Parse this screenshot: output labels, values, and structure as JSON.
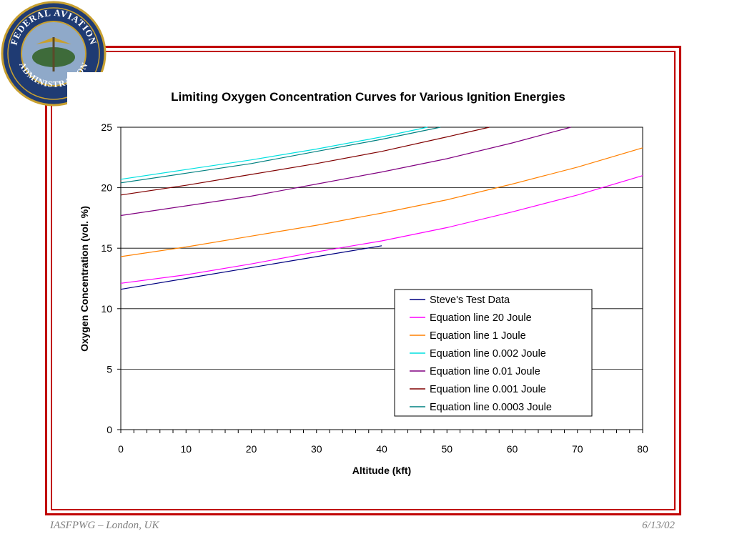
{
  "seal": {
    "top_text": "FEDERAL AVIATION",
    "bottom_text": "ADMINISTRATION"
  },
  "footer": {
    "left": "IASFPWG – London, UK",
    "right": "6/13/02"
  },
  "chart_data": {
    "type": "line",
    "title": "Limiting Oxygen Concentration Curves for Various Ignition Energies",
    "xlabel": "Altitude (kft)",
    "ylabel": "Oxygen Concentration (vol. %)",
    "xlim": [
      0,
      80
    ],
    "ylim": [
      0,
      25
    ],
    "xticks": [
      0,
      10,
      20,
      30,
      40,
      50,
      60,
      70,
      80
    ],
    "yticks": [
      0,
      5,
      10,
      15,
      20,
      25
    ],
    "grid": "horizontal",
    "legend_position": "lower-right",
    "series": [
      {
        "name": "Steve's Test Data",
        "color": "#000080",
        "x": [
          0,
          10,
          20,
          30,
          40
        ],
        "y": [
          11.6,
          12.5,
          13.4,
          14.3,
          15.2
        ]
      },
      {
        "name": "Equation line 20 Joule",
        "color": "#ff00ff",
        "x": [
          0,
          10,
          20,
          30,
          40,
          50,
          60,
          70,
          80
        ],
        "y": [
          12.1,
          12.8,
          13.7,
          14.7,
          15.6,
          16.7,
          18.0,
          19.4,
          21.0
        ]
      },
      {
        "name": "Equation line 1 Joule",
        "color": "#ff8000",
        "x": [
          0,
          10,
          20,
          30,
          40,
          50,
          60,
          70,
          80
        ],
        "y": [
          14.3,
          15.1,
          16.0,
          16.9,
          17.9,
          19.0,
          20.3,
          21.7,
          23.3
        ]
      },
      {
        "name": "Equation line 0.002 Joule",
        "color": "#00e0e0",
        "x": [
          0,
          10,
          20,
          30,
          40,
          47
        ],
        "y": [
          20.7,
          21.5,
          22.3,
          23.2,
          24.2,
          25.0
        ]
      },
      {
        "name": "Equation line 0.01 Joule",
        "color": "#800080",
        "x": [
          0,
          10,
          20,
          30,
          40,
          50,
          60,
          69
        ],
        "y": [
          17.7,
          18.5,
          19.3,
          20.3,
          21.3,
          22.4,
          23.7,
          25.0
        ]
      },
      {
        "name": "Equation line 0.001 Joule",
        "color": "#800000",
        "x": [
          0,
          10,
          20,
          30,
          40,
          50,
          56.5
        ],
        "y": [
          19.4,
          20.2,
          21.1,
          22.0,
          23.0,
          24.2,
          25.0
        ]
      },
      {
        "name": "Equation line 0.0003 Joule",
        "color": "#008080",
        "x": [
          0,
          10,
          20,
          30,
          40,
          49
        ],
        "y": [
          20.4,
          21.2,
          22.0,
          23.0,
          24.0,
          25.0
        ]
      }
    ]
  }
}
